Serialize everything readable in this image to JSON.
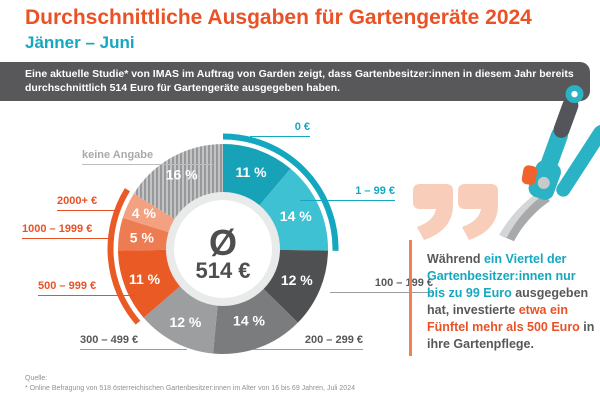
{
  "header": {
    "title": "Durchschnittliche Ausgaben für Gartengeräte 2024",
    "subtitle": "Jänner – Juni"
  },
  "banner": {
    "line1": "Eine aktuelle Studie* von IMAS im Auftrag von Garden zeigt, dass Gartenbesitzer:innen in diesem Jahr bereits",
    "line2": "durchschnittlich 514 Euro für Gartengeräte ausgegeben haben."
  },
  "chart_data": {
    "type": "pie",
    "subtype": "donut",
    "unit": "%",
    "center_symbol": "Ø",
    "center_value": "514 €",
    "slices": [
      {
        "label": "0 €",
        "value": 11,
        "color": "#17a2b8",
        "group": "teal"
      },
      {
        "label": "1 – 99 €",
        "value": 14,
        "color": "#3ec1d3",
        "group": "teal"
      },
      {
        "label": "100 – 199 €",
        "value": 12,
        "color": "#4f5052",
        "group": "gray"
      },
      {
        "label": "200 – 299 €",
        "value": 14,
        "color": "#7b7c7e",
        "group": "gray"
      },
      {
        "label": "300 – 499 €",
        "value": 12,
        "color": "#9d9ea0",
        "group": "gray"
      },
      {
        "label": "500 – 999 €",
        "value": 11,
        "color": "#ea5a25",
        "group": "orange"
      },
      {
        "label": "1000 – 1999 €",
        "value": 5,
        "color": "#ee7c52",
        "group": "orange"
      },
      {
        "label": "2000+ €",
        "value": 4,
        "color": "#f3a181",
        "group": "orange"
      },
      {
        "label": "keine Angabe",
        "value": 16,
        "color": "#aaabad",
        "pattern": "stripes",
        "group": "none"
      }
    ],
    "highlight_arcs": [
      {
        "from_slice": 0,
        "to_slice": 1,
        "color": "#14a8c0"
      },
      {
        "from_slice": 5,
        "to_slice": 7,
        "color": "#ea5a25"
      }
    ]
  },
  "quote": {
    "colors": {
      "dark": "#58585a",
      "teal": "#14a8c0",
      "orange": "#ea5226"
    },
    "segments": [
      {
        "text": "Während ",
        "color": "dark"
      },
      {
        "text": "ein Viertel der Gartenbesitzer:innen nur bis zu 99 Euro",
        "color": "teal"
      },
      {
        "text": " ausgegeben hat, investierte ",
        "color": "dark"
      },
      {
        "text": "etwa ein Fünftel mehr als 500 Euro",
        "color": "orange"
      },
      {
        "text": " in ihre Gartenpflege.",
        "color": "dark"
      }
    ]
  },
  "footer": {
    "source_label": "Quelle:",
    "source_text": "* Online Befragung von 518 österreichischen Gartenbesitzer:innen im Alter von 16 bis 69 Jahren, Juli 2024"
  },
  "palette": {
    "accent_orange": "#ea5226",
    "accent_teal": "#14a8c0",
    "banner_bg": "#58585a",
    "quote_marks": "#f8cdb9",
    "quote_bar": "#f08055"
  }
}
